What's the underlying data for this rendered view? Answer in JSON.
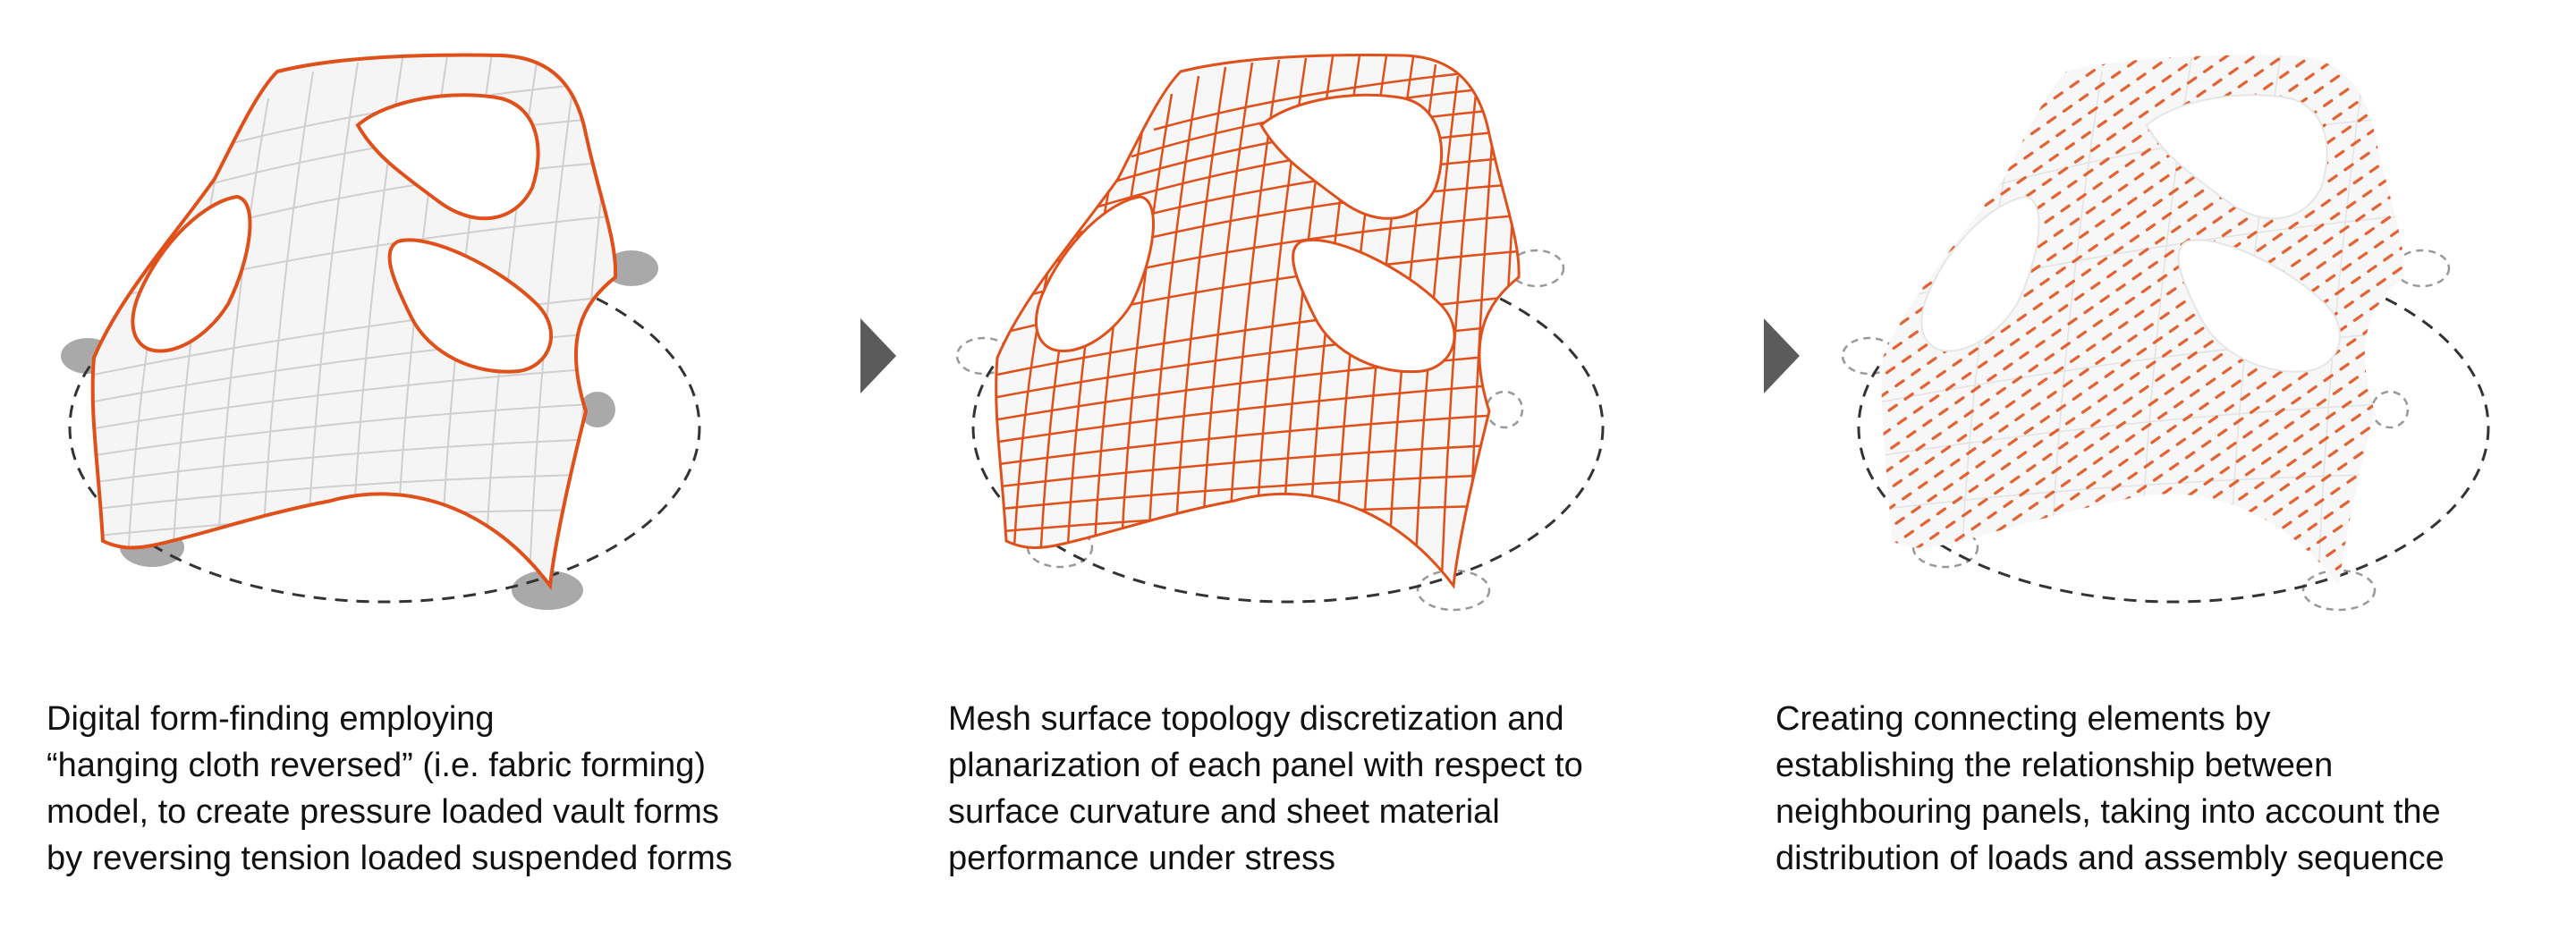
{
  "figure": {
    "steps": [
      {
        "stage": "form-finding",
        "caption_lines": [
          "Digital form-finding employing",
          "“hanging cloth reversed” (i.e. fabric forming)",
          "model, to create pressure loaded vault forms",
          "by reversing tension loaded suspended forms"
        ]
      },
      {
        "stage": "mesh-discretization",
        "caption_lines": [
          "Mesh surface topology discretization and",
          "planarization of each panel with respect to",
          "surface curvature and sheet material",
          "performance under stress"
        ]
      },
      {
        "stage": "connecting-elements",
        "caption_lines": [
          "Creating connecting elements by",
          "establishing the relationship between",
          "neighbouring panels, taking into account the",
          "distribution of loads and assembly sequence"
        ]
      }
    ],
    "colors": {
      "accent": "#e0501b",
      "grid_light": "#cfcfcf",
      "shell_fill": "#f5f5f5",
      "support_fill": "#a9a9a9",
      "dashed_line": "#333333",
      "arrow": "#5b5b5b",
      "text": "#111111"
    },
    "icons": [
      "right-triangle-arrow-icon",
      "right-triangle-arrow-icon"
    ]
  }
}
